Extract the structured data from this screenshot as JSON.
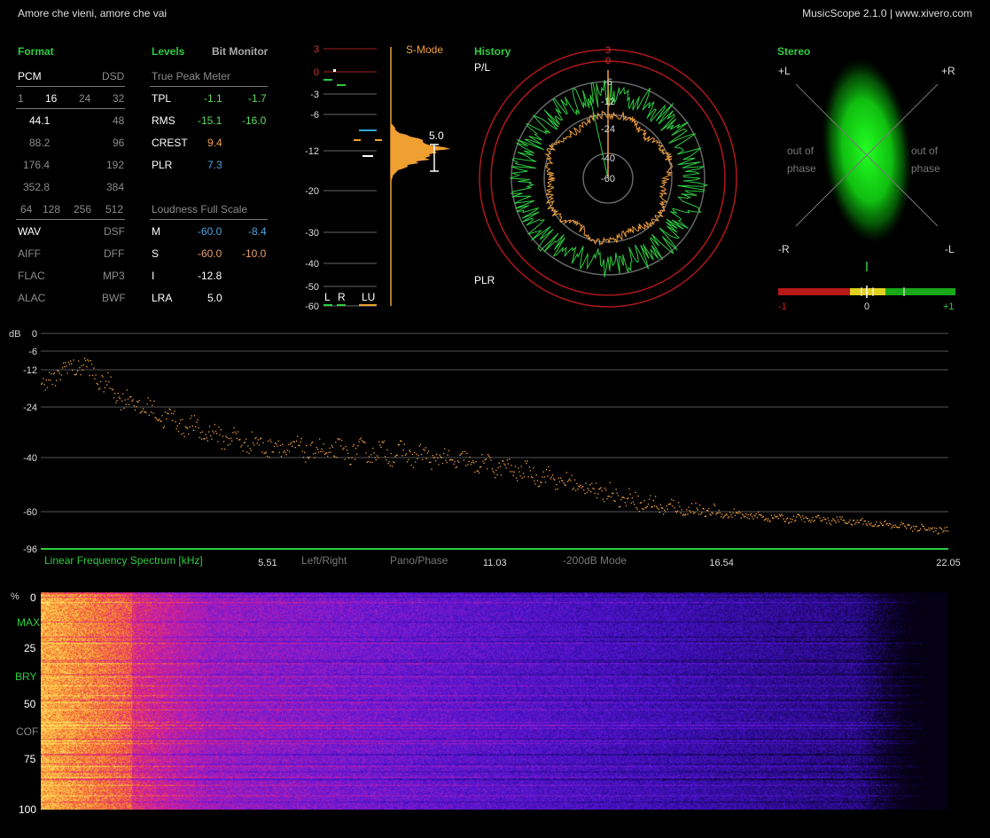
{
  "window": {
    "track_title": "Amore che vieni, amore che vai",
    "app_title": "MusicScope 2.1.0 | www.xivero.com"
  },
  "format": {
    "title": "Format",
    "pcm": "PCM",
    "dsd": "DSD",
    "bits": [
      "1",
      "16",
      "24",
      "32"
    ],
    "rates_left": [
      "44.1",
      "88.2",
      "176.4",
      "352.8"
    ],
    "rates_right": [
      "48",
      "96",
      "192",
      "384"
    ],
    "dsd_rates": [
      "64",
      "128",
      "256",
      "512"
    ],
    "containers": [
      [
        "WAV",
        "DSF"
      ],
      [
        "AIFF",
        "DFF"
      ],
      [
        "FLAC",
        "MP3"
      ],
      [
        "ALAC",
        "BWF"
      ]
    ]
  },
  "levels": {
    "title": "Levels",
    "bit_monitor": "Bit Monitor",
    "true_peak": "True Peak Meter",
    "rows": [
      {
        "label": "TPL",
        "left": "-1.1",
        "right": "-1.7"
      },
      {
        "label": "RMS",
        "left": "-15.1",
        "right": "-16.0"
      },
      {
        "label": "CREST",
        "left": "9.4"
      },
      {
        "label": "PLR",
        "left": "7.3"
      }
    ],
    "loudness_title": "Loudness Full Scale",
    "loud_rows": [
      {
        "label": "M",
        "left": "-60.0",
        "right": "-8.4"
      },
      {
        "label": "S",
        "left": "-60.0",
        "right": "-10.0"
      },
      {
        "label": "I",
        "left": "-12.8"
      },
      {
        "label": "LRA",
        "left": "5.0"
      }
    ]
  },
  "meter": {
    "mode": "S-Mode",
    "scale": [
      "3",
      "0",
      "-3",
      "-6",
      "-12",
      "-20",
      "-30",
      "-40",
      "-50",
      "-60"
    ],
    "lra_value": "5.0",
    "channels": [
      "L",
      "R",
      "LU"
    ],
    "colors": {
      "red": "#e03030",
      "green": "#2ecc40",
      "orange": "#f0a030",
      "cyan": "#2aa8d8"
    }
  },
  "history": {
    "title": "History",
    "pl": "P/L",
    "plr": "PLR",
    "ring_labels": [
      "3",
      "0",
      "-6",
      "-12",
      "-24",
      "-40",
      "-60"
    ]
  },
  "stereo": {
    "title": "Stereo",
    "tl": "+L",
    "tr": "+R",
    "bl": "-R",
    "br": "-L",
    "out_of_phase": [
      "out of",
      "phase"
    ],
    "corr_labels": [
      "-1",
      "0",
      "+1"
    ]
  },
  "spectrum": {
    "unit": "dB",
    "y_labels": [
      "0",
      "-6",
      "-12",
      "-24",
      "-40",
      "-60",
      "-96"
    ],
    "title": "Linear Frequency Spectrum [kHz]",
    "x_labels": [
      "5.51",
      "11.03",
      "16.54",
      "22.05"
    ],
    "buttons": [
      "Left/Right",
      "Pano/Phase",
      "-200dB Mode"
    ]
  },
  "spectrogram": {
    "unit": "%",
    "labels": [
      "0",
      "MAX",
      "25",
      "BRY",
      "50",
      "COF",
      "75",
      "100"
    ]
  },
  "chart_data": {
    "type": "scatter",
    "title": "Linear Frequency Spectrum [kHz]",
    "xlabel": "Linear Frequency Spectrum [kHz]",
    "ylabel": "dB",
    "xlim": [
      0,
      22.05
    ],
    "ylim": [
      -96,
      0
    ],
    "x_ticks": [
      5.51,
      11.03,
      16.54,
      22.05
    ],
    "y_ticks": [
      0,
      -6,
      -12,
      -24,
      -40,
      -60,
      -96
    ],
    "envelope": {
      "x": [
        0,
        0.5,
        1.0,
        1.5,
        2.0,
        2.5,
        3.0,
        4.0,
        5.0,
        6.0,
        7.0,
        8.0,
        9.0,
        10.0,
        11.0,
        12.0,
        13.0,
        14.0,
        15.0,
        16.0,
        17.0,
        18.0,
        19.0,
        20.0,
        21.0,
        22.05
      ],
      "y": [
        -18,
        -12,
        -10,
        -16,
        -21,
        -24,
        -27,
        -32,
        -35,
        -37,
        -38,
        -38,
        -39,
        -41,
        -43,
        -46,
        -50,
        -54,
        -58,
        -60,
        -63,
        -66,
        -67,
        -70,
        -74,
        -78
      ]
    },
    "grid": true,
    "color": "#f0a040"
  }
}
